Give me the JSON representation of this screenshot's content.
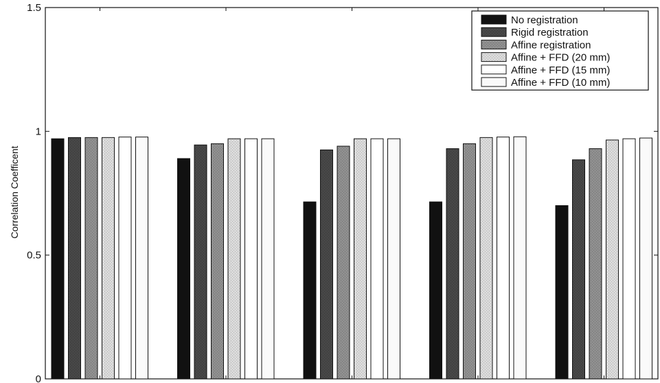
{
  "chart_data": {
    "type": "bar",
    "title": "",
    "xlabel": "",
    "ylabel": "Correlation Coefficent",
    "ylim": [
      0,
      1.5
    ],
    "yticks": [
      "0",
      "0.5",
      "1",
      "1.5"
    ],
    "categories": [
      "",
      "",
      "",
      "",
      ""
    ],
    "series": [
      {
        "name": "No registration",
        "color": "#111111",
        "values": [
          0.97,
          0.89,
          0.715,
          0.715,
          0.7
        ]
      },
      {
        "name": "Rigid registration",
        "color": "#474747",
        "values": [
          0.975,
          0.945,
          0.925,
          0.93,
          0.885
        ]
      },
      {
        "name": "Affine registration",
        "color": "#8f8f8f",
        "values": [
          0.975,
          0.95,
          0.94,
          0.95,
          0.93
        ]
      },
      {
        "name": "Affine + FFD (20 mm)",
        "color": "#dadada",
        "values": [
          0.975,
          0.97,
          0.97,
          0.975,
          0.965
        ]
      },
      {
        "name": "Affine + FFD (15 mm)",
        "color": "#ffffff",
        "values": [
          0.977,
          0.97,
          0.97,
          0.977,
          0.97
        ]
      },
      {
        "name": "Affine + FFD (10 mm)",
        "color": "#fafafa",
        "values": [
          0.977,
          0.97,
          0.97,
          0.978,
          0.973
        ]
      }
    ],
    "legend_position": "top-right",
    "grid": false
  }
}
